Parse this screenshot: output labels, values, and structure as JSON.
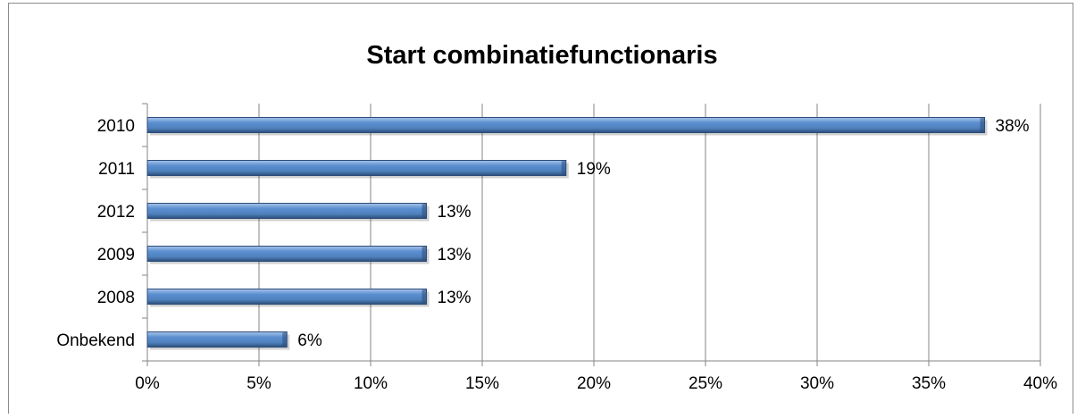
{
  "chart_data": {
    "type": "bar",
    "orientation": "horizontal",
    "title": "Start combinatiefunctionaris",
    "categories": [
      "2010",
      "2011",
      "2012",
      "2009",
      "2008",
      "Onbekend"
    ],
    "values": [
      37.5,
      18.75,
      12.5,
      12.5,
      12.5,
      6.25
    ],
    "data_labels": [
      "38%",
      "19%",
      "13%",
      "13%",
      "13%",
      "6%"
    ],
    "xlim": [
      0,
      40
    ],
    "x_ticks": [
      0,
      5,
      10,
      15,
      20,
      25,
      30,
      35,
      40
    ],
    "x_tick_labels": [
      "0%",
      "5%",
      "10%",
      "15%",
      "20%",
      "25%",
      "30%",
      "35%",
      "40%"
    ],
    "grid": "vertical",
    "legend": "none",
    "colors": {
      "bar": "#4f81bd",
      "bar_light": "#a9c4ea",
      "bar_dark": "#2c4d7a",
      "grid": "#868686",
      "axis": "#868686",
      "frame": "#8c8c8c"
    }
  }
}
